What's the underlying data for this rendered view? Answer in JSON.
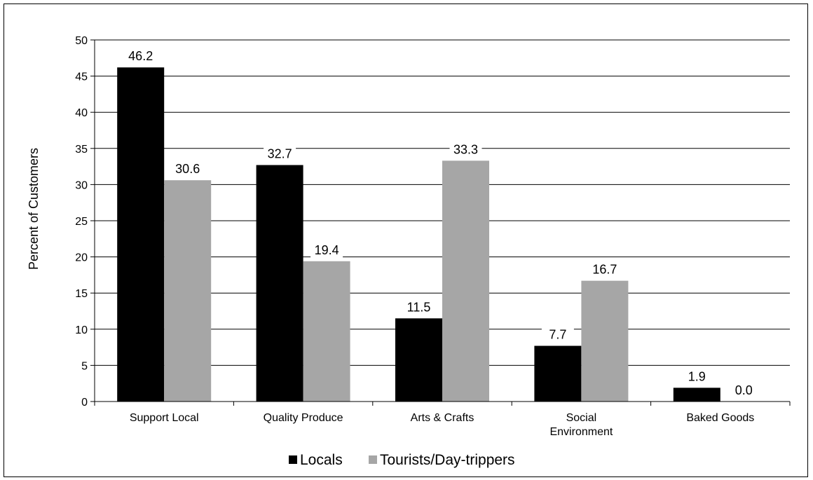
{
  "chart_data": {
    "type": "bar",
    "categories": [
      [
        "Support Local"
      ],
      [
        "Quality Produce"
      ],
      [
        "Arts & Crafts"
      ],
      [
        "Social",
        "Environment"
      ],
      [
        "Baked Goods"
      ]
    ],
    "series": [
      {
        "name": "Locals",
        "color": "#000000",
        "values": [
          46.2,
          32.7,
          11.5,
          7.7,
          1.9
        ]
      },
      {
        "name": "Tourists/Day-trippers",
        "color": "#a6a6a6",
        "values": [
          30.6,
          19.4,
          33.3,
          16.7,
          0.0
        ]
      }
    ],
    "ylabel": "Percent of Customers",
    "xlabel": "",
    "title": "",
    "ylim": [
      0,
      50
    ],
    "yticks": [
      0,
      5,
      10,
      15,
      20,
      25,
      30,
      35,
      40,
      45,
      50
    ],
    "grid": true,
    "legend_position": "bottom"
  }
}
